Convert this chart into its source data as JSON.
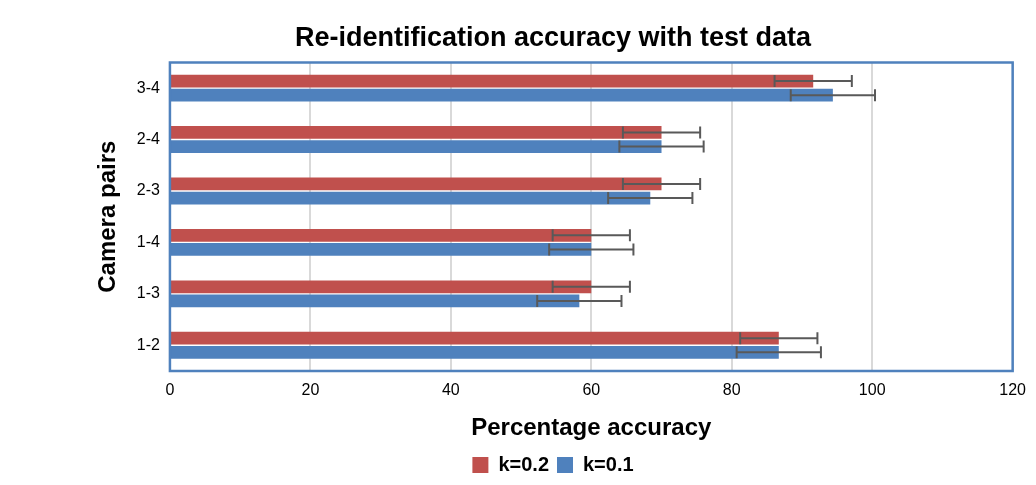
{
  "chart_data": {
    "type": "bar",
    "orientation": "horizontal",
    "title": "Re-identification accuracy with test data",
    "xlabel": "Percentage accuracy",
    "ylabel": "Camera pairs",
    "categories": [
      "3-4",
      "2-4",
      "2-3",
      "1-4",
      "1-3",
      "1-2"
    ],
    "series": [
      {
        "name": "k=0.2",
        "color": "#c0504d",
        "values": [
          91.6,
          70,
          70,
          60,
          60,
          86.7
        ],
        "errors": [
          5.5,
          5.5,
          5.5,
          5.5,
          5.5,
          5.5
        ]
      },
      {
        "name": "k=0.1",
        "color": "#4f81bd",
        "values": [
          94.4,
          70,
          68.4,
          60,
          58.3,
          86.7
        ],
        "errors": [
          6,
          6,
          6,
          6,
          6,
          6
        ]
      }
    ],
    "xlim": [
      0,
      120
    ],
    "xticks": [
      0,
      20,
      40,
      60,
      80,
      100,
      120
    ],
    "grid": "x",
    "legend": "bottom"
  }
}
